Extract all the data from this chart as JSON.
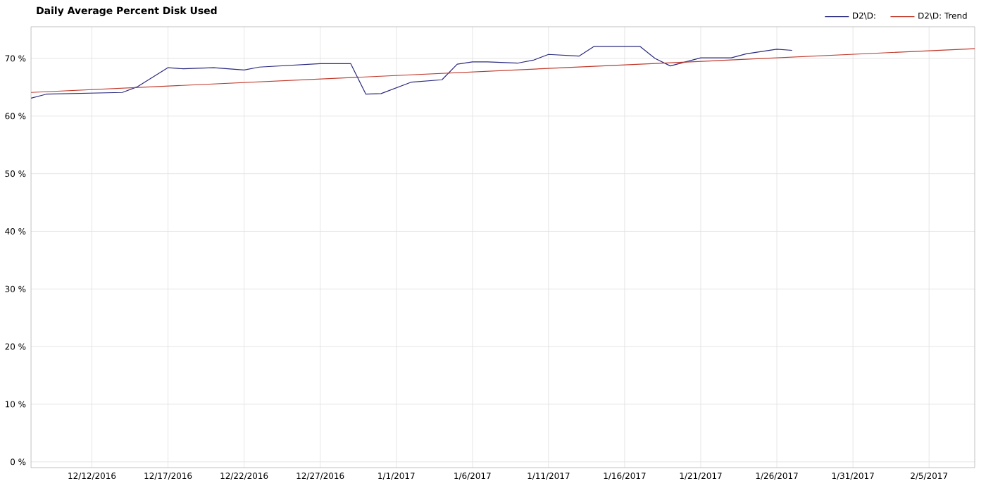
{
  "chart_data": {
    "type": "line",
    "title": "Daily Average Percent Disk Used",
    "xlim": [
      "2016-12-08",
      "2017-02-08"
    ],
    "xticks": [
      {
        "value": "2016-12-12",
        "label": "12/12/2016"
      },
      {
        "value": "2016-12-17",
        "label": "12/17/2016"
      },
      {
        "value": "2016-12-22",
        "label": "12/22/2016"
      },
      {
        "value": "2016-12-27",
        "label": "12/27/2016"
      },
      {
        "value": "2017-01-01",
        "label": "1/1/2017"
      },
      {
        "value": "2017-01-06",
        "label": "1/6/2017"
      },
      {
        "value": "2017-01-11",
        "label": "1/11/2017"
      },
      {
        "value": "2017-01-16",
        "label": "1/16/2017"
      },
      {
        "value": "2017-01-21",
        "label": "1/21/2017"
      },
      {
        "value": "2017-01-26",
        "label": "1/26/2017"
      },
      {
        "value": "2017-01-31",
        "label": "1/31/2017"
      },
      {
        "value": "2017-02-05",
        "label": "2/5/2017"
      }
    ],
    "ylim": [
      -1,
      75.5
    ],
    "yticks": [
      {
        "value": 0,
        "label": "0 %"
      },
      {
        "value": 10,
        "label": "10 %"
      },
      {
        "value": 20,
        "label": "20 %"
      },
      {
        "value": 30,
        "label": "30 %"
      },
      {
        "value": 40,
        "label": "40 %"
      },
      {
        "value": 50,
        "label": "50 %"
      },
      {
        "value": 60,
        "label": "60 %"
      },
      {
        "value": 70,
        "label": "70 %"
      }
    ],
    "grid": true,
    "legend": "top right",
    "marker": "none",
    "line_style": "solid",
    "series": [
      {
        "name": "D2\\D:",
        "color": "#2a2a80",
        "x": [
          "2016-12-08",
          "2016-12-09",
          "2016-12-14",
          "2016-12-15",
          "2016-12-17",
          "2016-12-18",
          "2016-12-20",
          "2016-12-22",
          "2016-12-23",
          "2016-12-27",
          "2016-12-29",
          "2016-12-30",
          "2016-12-31",
          "2017-01-02",
          "2017-01-04",
          "2017-01-05",
          "2017-01-06",
          "2017-01-07",
          "2017-01-09",
          "2017-01-10",
          "2017-01-11",
          "2017-01-13",
          "2017-01-14",
          "2017-01-17",
          "2017-01-18",
          "2017-01-19",
          "2017-01-21",
          "2017-01-23",
          "2017-01-24",
          "2017-01-26",
          "2017-01-27"
        ],
        "values": [
          63.1,
          63.8,
          64.1,
          65.1,
          68.4,
          68.2,
          68.4,
          68.0,
          68.5,
          69.1,
          69.1,
          63.8,
          63.9,
          65.9,
          66.3,
          69.0,
          69.4,
          69.4,
          69.2,
          69.7,
          70.7,
          70.4,
          72.1,
          72.1,
          70.0,
          68.7,
          70.1,
          70.1,
          70.8,
          71.6,
          71.4
        ]
      },
      {
        "name": "D2\\D: Trend",
        "color": "#c0392b",
        "x": [
          "2016-12-08",
          "2017-02-08"
        ],
        "values": [
          64.1,
          71.7
        ]
      }
    ]
  }
}
